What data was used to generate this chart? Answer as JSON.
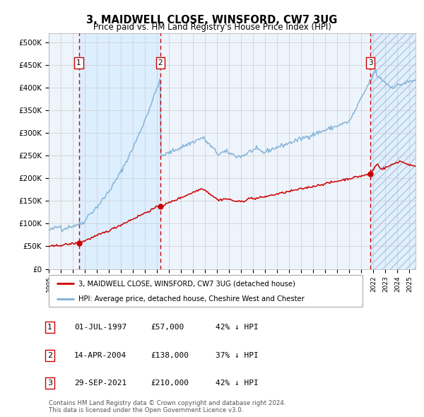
{
  "title": "3, MAIDWELL CLOSE, WINSFORD, CW7 3UG",
  "subtitle": "Price paid vs. HM Land Registry's House Price Index (HPI)",
  "xlim_start": 1995.0,
  "xlim_end": 2025.5,
  "ylim": [
    0,
    520000
  ],
  "yticks": [
    0,
    50000,
    100000,
    150000,
    200000,
    250000,
    300000,
    350000,
    400000,
    450000,
    500000
  ],
  "ytick_labels": [
    "£0",
    "£50K",
    "£100K",
    "£150K",
    "£200K",
    "£250K",
    "£300K",
    "£350K",
    "£400K",
    "£450K",
    "£500K"
  ],
  "transactions": [
    {
      "label": "1",
      "date_num": 1997.5,
      "price": 57000,
      "date_str": "01-JUL-1997",
      "price_str": "£57,000",
      "pct": "42% ↓ HPI"
    },
    {
      "label": "2",
      "date_num": 2004.28,
      "price": 138000,
      "date_str": "14-APR-2004",
      "price_str": "£138,000",
      "pct": "37% ↓ HPI"
    },
    {
      "label": "3",
      "date_num": 2021.75,
      "price": 210000,
      "date_str": "29-SEP-2021",
      "price_str": "£210,000",
      "pct": "42% ↓ HPI"
    }
  ],
  "red_line_color": "#cc0000",
  "blue_line_color": "#7aaed6",
  "dashed_line_color": "#cc0000",
  "shaded_bg_color": "#ddeeff",
  "grid_color": "#cccccc",
  "chart_bg_color": "#eef4fb",
  "legend_label_red": "3, MAIDWELL CLOSE, WINSFORD, CW7 3UG (detached house)",
  "legend_label_blue": "HPI: Average price, detached house, Cheshire West and Chester",
  "footer": "Contains HM Land Registry data © Crown copyright and database right 2024.\nThis data is licensed under the Open Government Licence v3.0."
}
